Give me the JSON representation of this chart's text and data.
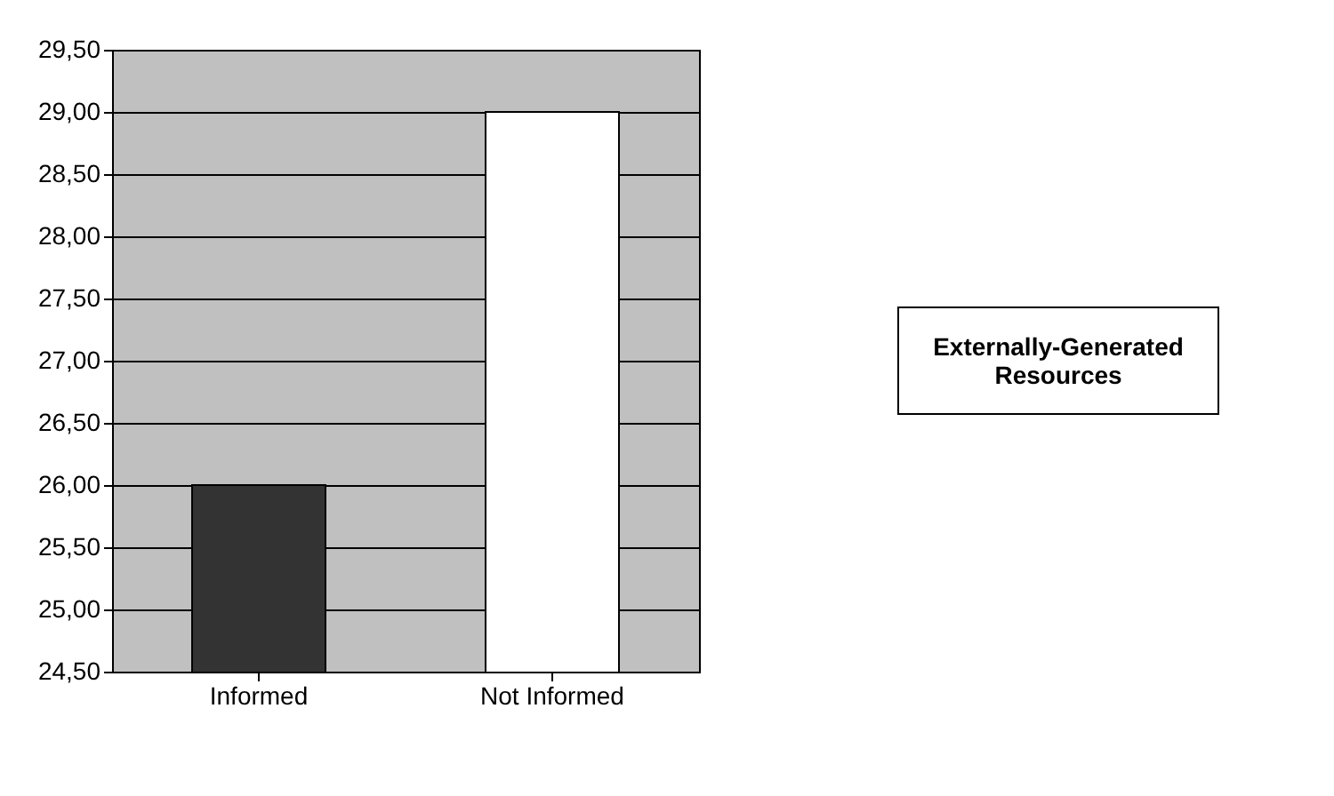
{
  "chart_data": {
    "type": "bar",
    "categories": [
      "Informed",
      "Not Informed"
    ],
    "values": [
      26.0,
      29.0
    ],
    "colors": [
      "#333333",
      "#ffffff"
    ],
    "ylim": [
      24.5,
      29.5
    ],
    "yticks": [
      {
        "value": 24.5,
        "label": "24,50"
      },
      {
        "value": 25,
        "label": "25,00"
      },
      {
        "value": 25.5,
        "label": "25,50"
      },
      {
        "value": 26,
        "label": "26,00"
      },
      {
        "value": 26.5,
        "label": "26,50"
      },
      {
        "value": 27,
        "label": "27,00"
      },
      {
        "value": 27.5,
        "label": "27,50"
      },
      {
        "value": 28,
        "label": "28,00"
      },
      {
        "value": 28.5,
        "label": "28,50"
      },
      {
        "value": 29,
        "label": "29,00"
      },
      {
        "value": 29.5,
        "label": "29,50"
      }
    ],
    "legend_title": "Externally-Generated Resources",
    "grid": "y"
  }
}
